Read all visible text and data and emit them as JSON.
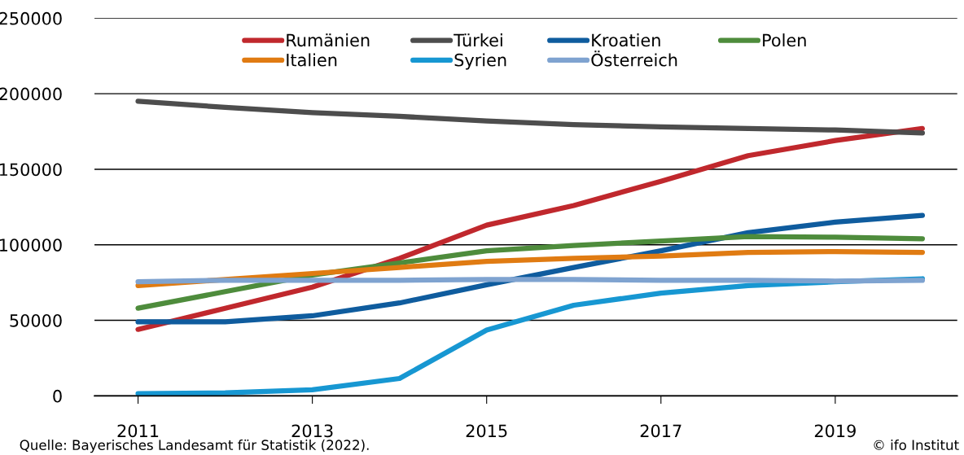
{
  "chart_data": {
    "type": "line",
    "x": [
      2011,
      2012,
      2013,
      2014,
      2015,
      2016,
      2017,
      2018,
      2019,
      2020
    ],
    "xlim": [
      2010.5,
      2020.4
    ],
    "xticks": [
      2011,
      2013,
      2015,
      2017,
      2019
    ],
    "ylim": [
      0,
      250000
    ],
    "yticks": [
      0,
      50000,
      100000,
      150000,
      200000,
      250000
    ],
    "grid": "y",
    "legend": "top",
    "line_style": "solid",
    "marker": "none",
    "series": [
      {
        "name": "Rumänien",
        "color": "#c0282d",
        "values": [
          44000,
          58000,
          72000,
          91000,
          113000,
          126000,
          142000,
          159000,
          169000,
          177000
        ]
      },
      {
        "name": "Türkei",
        "color": "#4d4d4d",
        "values": [
          195000,
          191000,
          187500,
          185000,
          182000,
          179500,
          178000,
          177000,
          176000,
          174000
        ]
      },
      {
        "name": "Kroatien",
        "color": "#0f5c9e",
        "values": [
          49000,
          49000,
          53000,
          61500,
          73500,
          85000,
          96000,
          108000,
          115000,
          119500
        ]
      },
      {
        "name": "Polen",
        "color": "#4e8c3c",
        "values": [
          58000,
          69000,
          80000,
          88000,
          96000,
          99500,
          102500,
          105500,
          105000,
          104000
        ]
      },
      {
        "name": "Italien",
        "color": "#e07b12",
        "values": [
          73000,
          77000,
          81000,
          85000,
          89000,
          91000,
          92500,
          95000,
          95500,
          95000
        ]
      },
      {
        "name": "Syrien",
        "color": "#1797d2",
        "values": [
          1500,
          2000,
          4000,
          11500,
          43500,
          60000,
          68000,
          73000,
          75500,
          77500
        ]
      },
      {
        "name": "Österreich",
        "color": "#7fa3d0",
        "values": [
          75500,
          76500,
          76500,
          76500,
          77000,
          77000,
          76500,
          76500,
          76000,
          76500
        ]
      }
    ],
    "annotations": [
      "Quelle: Bayerisches Landesamt für Statistik (2022).",
      "© ifo Institut"
    ]
  }
}
